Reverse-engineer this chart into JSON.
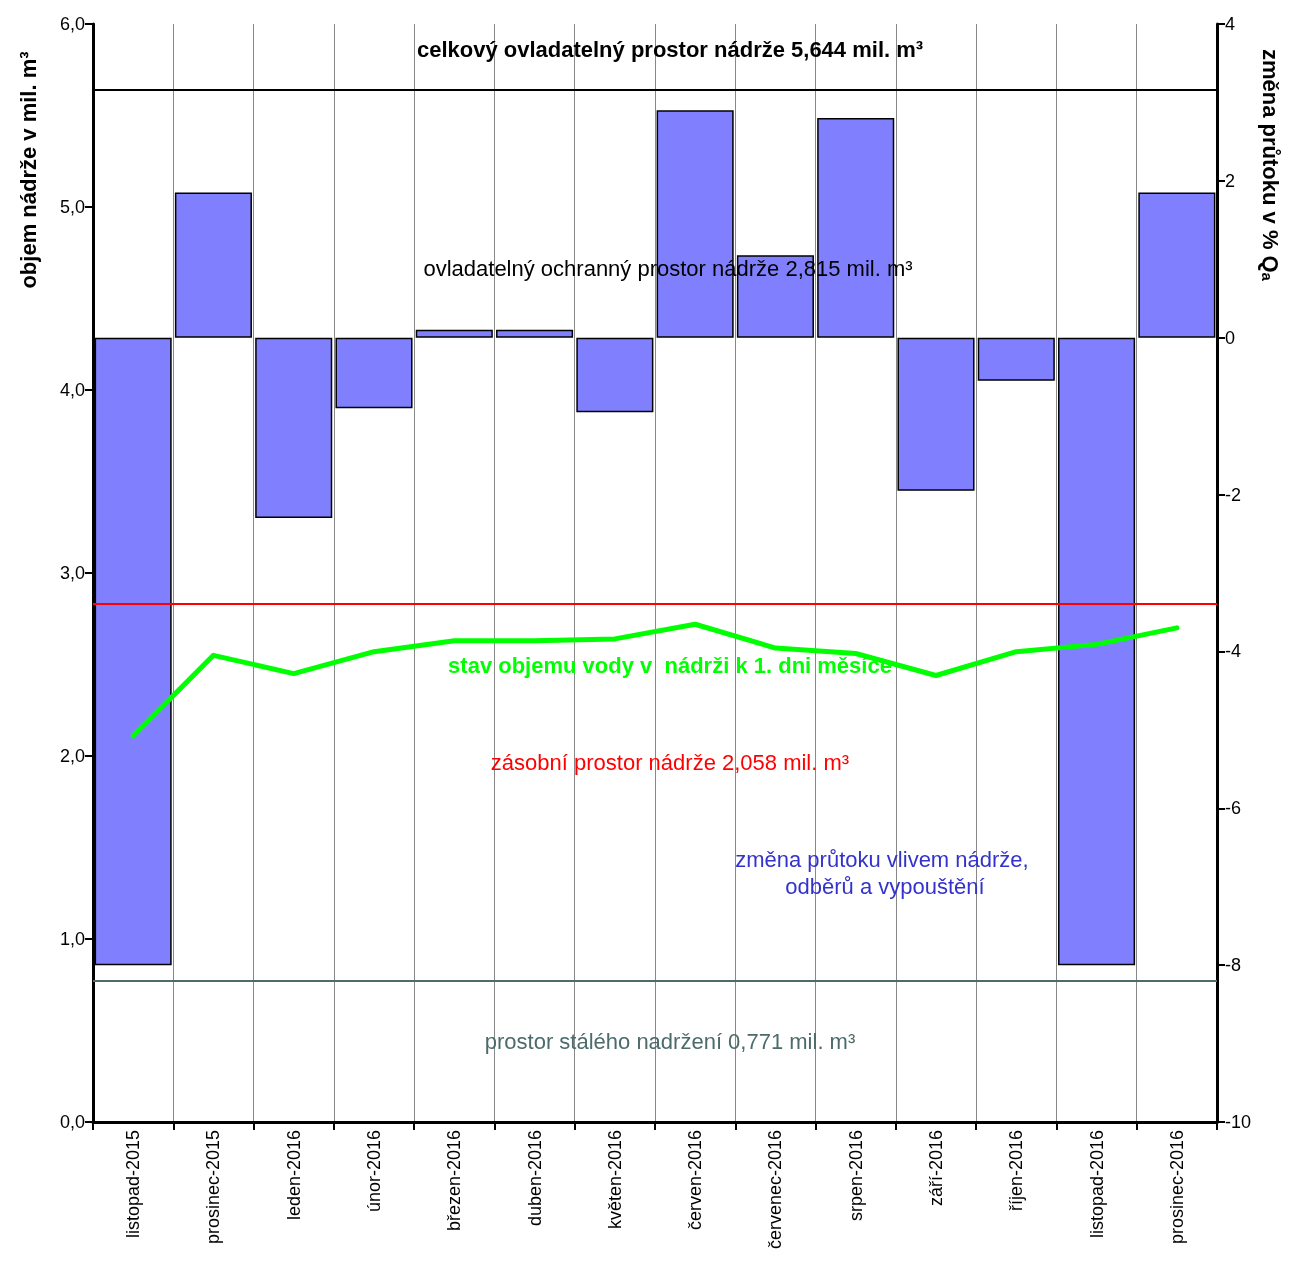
{
  "chart_data": {
    "type": "bar",
    "ylabel": "objem nádrže v mil. m³",
    "y2label": "změna průtoku v % Qₐ",
    "categories": [
      "listopad-2015",
      "prosinec-2015",
      "leden-2016",
      "únor-2016",
      "březen-2016",
      "duben-2016",
      "květen-2016",
      "červen-2016",
      "červenec-2016",
      "srpen-2016",
      "září-2016",
      "říjen-2016",
      "listopad-2016",
      "prosinec-2016"
    ],
    "series": [
      {
        "name": "změna průtoku vlivem nádrže, odběrů a vypouštění",
        "axis": "y2",
        "color": "#8080ff",
        "values": [
          -8.0,
          1.85,
          -2.3,
          -0.9,
          0.1,
          0.1,
          -0.95,
          2.9,
          1.05,
          2.8,
          -1.95,
          -0.55,
          -8.0,
          1.85
        ]
      },
      {
        "name": "stav objemu vody v  nádrži k 1. dni měsíce",
        "type": "line",
        "color": "#00ff00",
        "values": [
          2.11,
          2.55,
          2.45,
          2.57,
          2.63,
          2.63,
          2.64,
          2.72,
          2.59,
          2.56,
          2.44,
          2.57,
          2.61,
          2.7
        ]
      }
    ],
    "ylim": [
      0,
      6
    ],
    "yticks": [
      {
        "value": 0,
        "label": "0,0"
      },
      {
        "value": 1,
        "label": "1,0"
      },
      {
        "value": 2,
        "label": "2,0"
      },
      {
        "value": 3,
        "label": "3,0"
      },
      {
        "value": 4,
        "label": "4,0"
      },
      {
        "value": 5,
        "label": "5,0"
      },
      {
        "value": 6,
        "label": "6,0"
      }
    ],
    "y2lim": [
      -10,
      4
    ],
    "y2ticks": [
      -10,
      -8,
      -6,
      -4,
      -2,
      0,
      2,
      4
    ],
    "ref_lines": [
      {
        "axis": "y",
        "value": 5.644,
        "label": "celkový ovladatelný prostor nádrže 5,644 mil. m³",
        "color": "#000000"
      },
      {
        "axis": "y",
        "value": 2.829,
        "label": "zásobní prostor nádrže 2,058 mil. m³",
        "color": "#ff0000"
      },
      {
        "axis": "y",
        "value": 0.771,
        "label": "prostor stálého nadržení 0,771 mil. m³",
        "color": "#4d6b6b"
      }
    ],
    "annotations": [
      "ovladatelný ochranný prostor nádrže 2,815 mil. m³"
    ],
    "grid": "x",
    "legend": false,
    "marker": "none"
  }
}
